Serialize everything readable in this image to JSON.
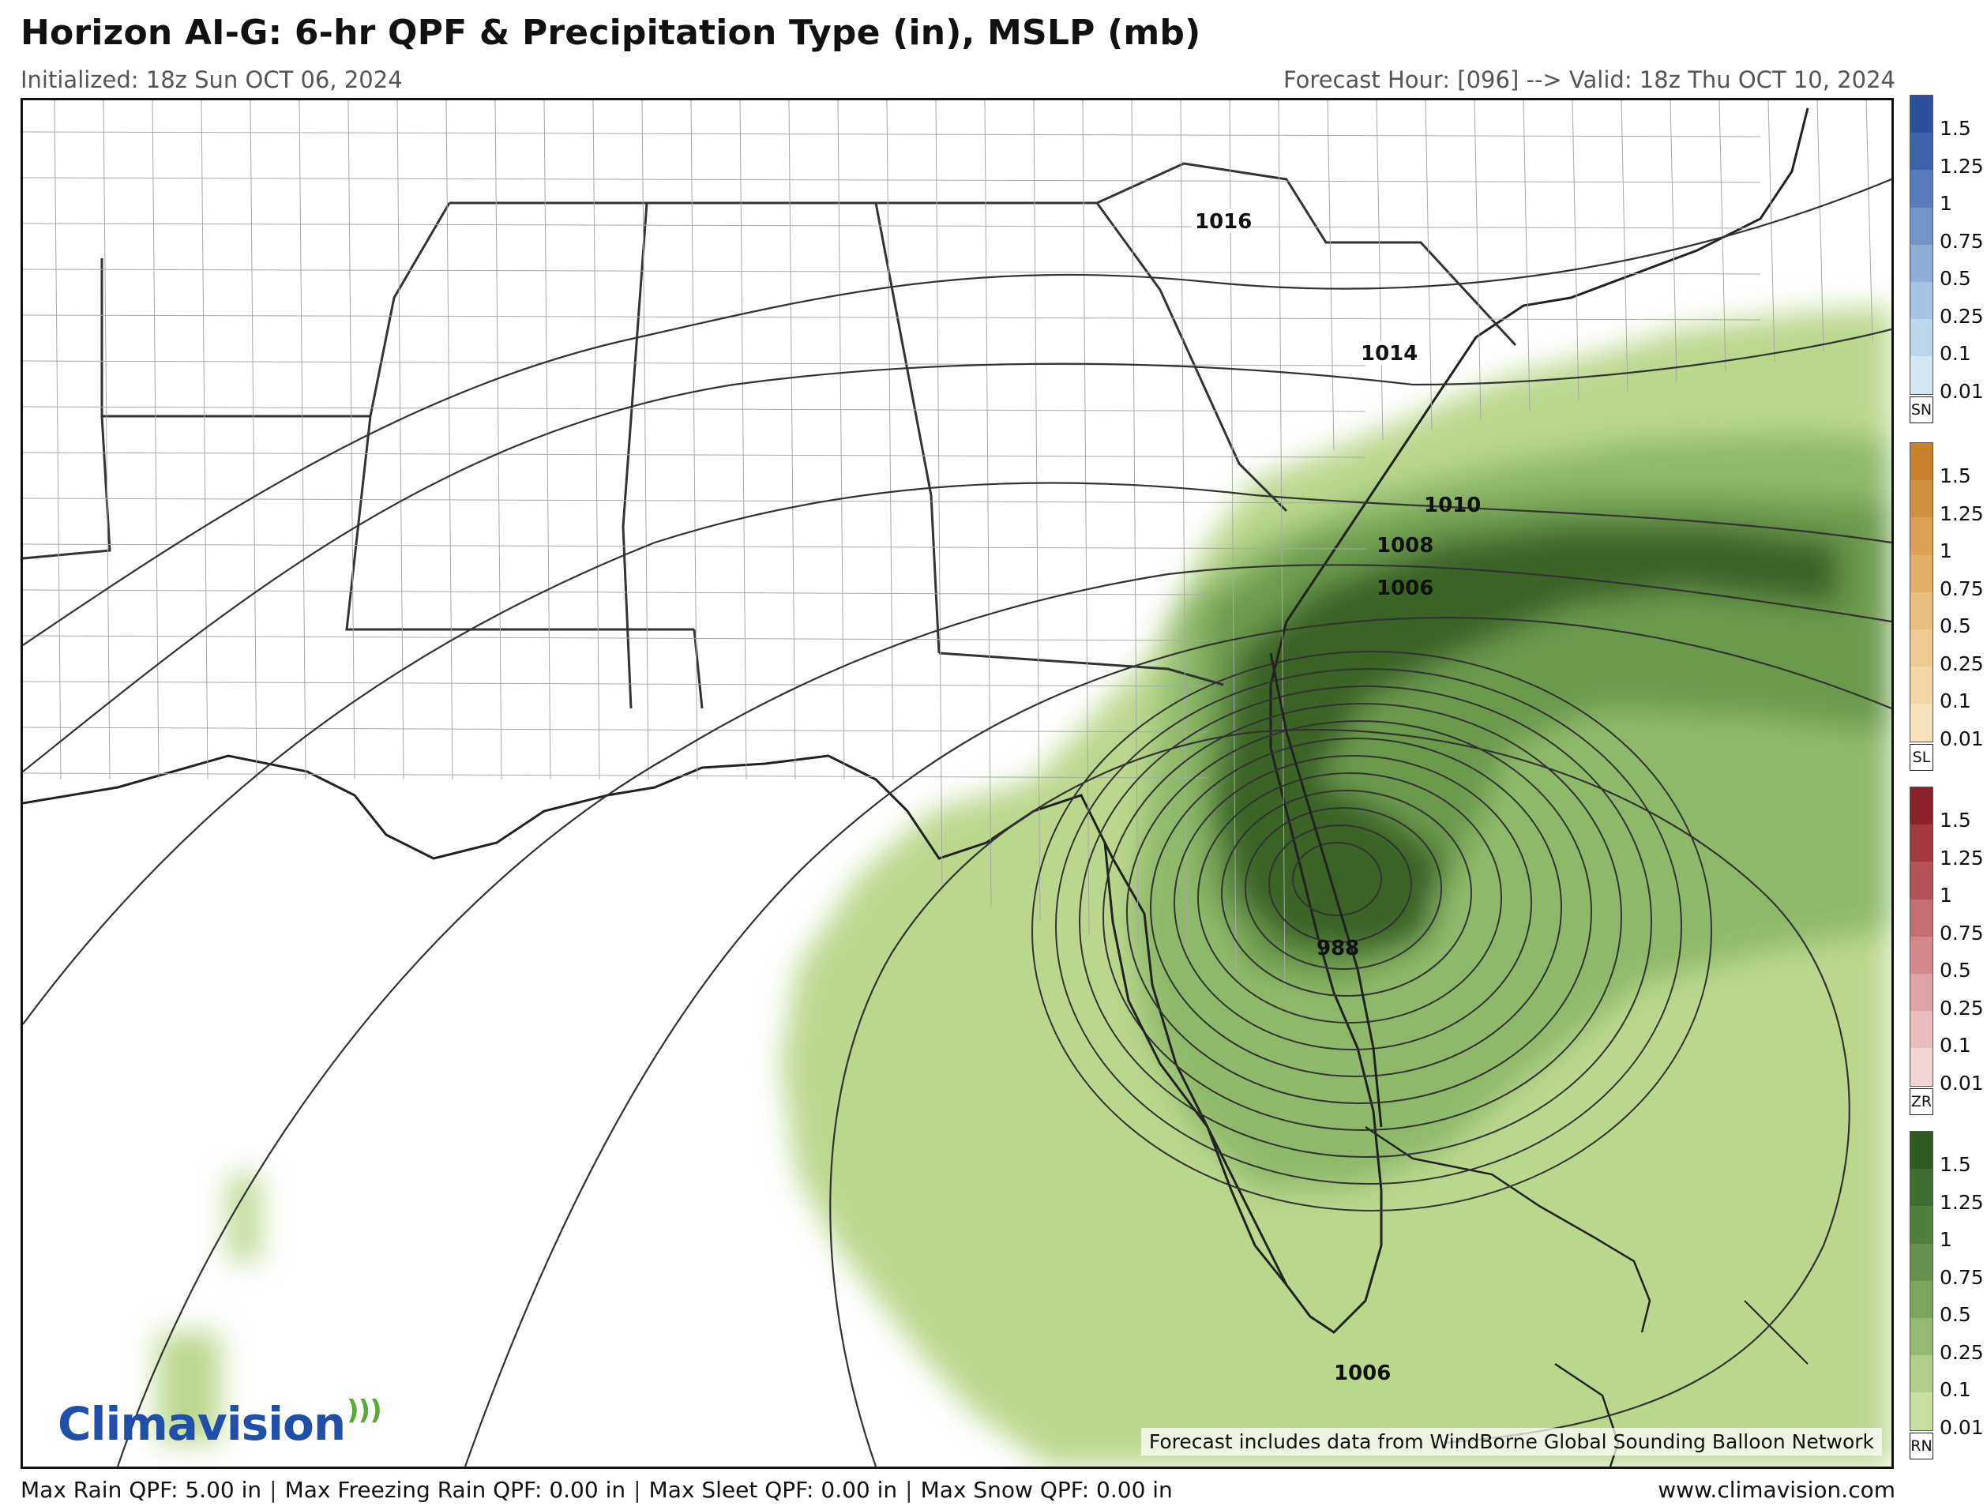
{
  "header": {
    "title": "Horizon AI-G: 6-hr QPF & Precipitation Type (in), MSLP (mb)",
    "initialized": "Initialized: 18z Sun OCT 06, 2024",
    "valid": "Forecast Hour: [096] --> Valid: 18z Thu OCT 10, 2024"
  },
  "map": {
    "isobar_labels": [
      "1016",
      "1014",
      "1010",
      "1008",
      "1006",
      "988",
      "1006"
    ],
    "low_center_mb": 988,
    "logo_text": "Climavision",
    "notice": "Forecast includes data from WindBorne Global Sounding Balloon Network",
    "colors": {
      "rain_light": "#b9d88e",
      "rain_mid": "#8fb96a",
      "rain_heavy": "#6c9a4d",
      "rain_extreme": "#3a6328",
      "state_border": "#333333",
      "county_border": "#9a9a9a",
      "isobar": "#333333"
    }
  },
  "legend": {
    "ticks": [
      "1.5",
      "1.25",
      "1",
      "0.75",
      "0.5",
      "0.25",
      "0.1",
      "0.01"
    ],
    "groups": [
      {
        "tag": "SN",
        "colors": [
          "#2c4f9e",
          "#3e62ab",
          "#5a7cbc",
          "#7495c9",
          "#8fadd6",
          "#a7c3e2",
          "#bcd6ec",
          "#d2e6f4"
        ]
      },
      {
        "tag": "SL",
        "colors": [
          "#c9822b",
          "#d3913d",
          "#dca154",
          "#e3b068",
          "#e9be7e",
          "#eeca92",
          "#f3d6a6",
          "#f7e1bb"
        ]
      },
      {
        "tag": "ZR",
        "colors": [
          "#8c2129",
          "#a3383e",
          "#b55358",
          "#c56e72",
          "#d3898c",
          "#dea3a5",
          "#e9bcbe",
          "#f2d4d5"
        ]
      },
      {
        "tag": "RN",
        "colors": [
          "#2f5a22",
          "#3f6c2f",
          "#517f3c",
          "#66924d",
          "#7ca55f",
          "#95b972",
          "#b0cd89",
          "#c8df9f"
        ]
      }
    ]
  },
  "footer": {
    "items": [
      "Max Rain QPF: 5.00 in",
      "Max Freezing Rain QPF: 0.00 in",
      "Max Sleet QPF: 0.00 in",
      "Max Snow QPF: 0.00 in"
    ],
    "separator": "|",
    "site": "www.climavision.com"
  }
}
